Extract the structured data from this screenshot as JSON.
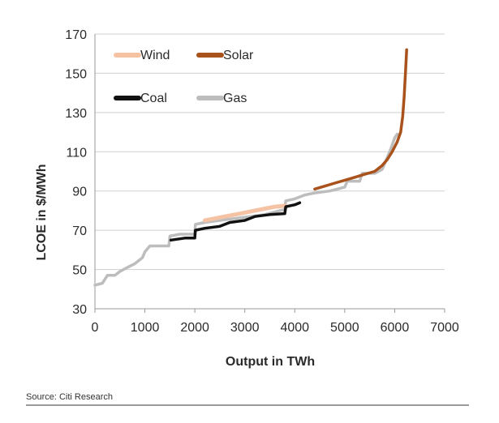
{
  "chart_data": {
    "type": "line",
    "xlabel": "Output in TWh",
    "ylabel": "LCOE in $/MWh",
    "xlim": [
      0,
      7000
    ],
    "ylim": [
      30,
      170
    ],
    "xticks": [
      0,
      1000,
      2000,
      3000,
      4000,
      5000,
      6000,
      7000
    ],
    "yticks": [
      30,
      50,
      70,
      90,
      110,
      130,
      150,
      170
    ],
    "grid": "horizontal",
    "legend_placement": "top-left",
    "series": [
      {
        "name": "Wind",
        "color": "#f5c2a4",
        "points": [
          [
            2200,
            75
          ],
          [
            2400,
            76
          ],
          [
            2600,
            77
          ],
          [
            2800,
            78
          ],
          [
            3000,
            79
          ],
          [
            3200,
            80
          ],
          [
            3400,
            81
          ],
          [
            3600,
            82
          ],
          [
            3800,
            82.5
          ]
        ]
      },
      {
        "name": "Solar",
        "color": "#a9521c",
        "points": [
          [
            4400,
            91
          ],
          [
            4600,
            92.5
          ],
          [
            4800,
            94
          ],
          [
            5000,
            95.5
          ],
          [
            5200,
            97
          ],
          [
            5400,
            98.5
          ],
          [
            5600,
            100
          ],
          [
            5750,
            103
          ],
          [
            5850,
            106
          ],
          [
            5950,
            110
          ],
          [
            6050,
            115
          ],
          [
            6120,
            120
          ],
          [
            6160,
            128
          ],
          [
            6190,
            138
          ],
          [
            6215,
            150
          ],
          [
            6240,
            162
          ]
        ]
      },
      {
        "name": "Coal",
        "color": "#111111",
        "points": [
          [
            1520,
            65
          ],
          [
            1800,
            66
          ],
          [
            2000,
            66
          ],
          [
            2010,
            70
          ],
          [
            2200,
            71
          ],
          [
            2500,
            72
          ],
          [
            2700,
            74
          ],
          [
            3000,
            75
          ],
          [
            3200,
            77
          ],
          [
            3500,
            78
          ],
          [
            3800,
            78.5
          ],
          [
            3820,
            82
          ],
          [
            4000,
            83
          ],
          [
            4100,
            84
          ]
        ]
      },
      {
        "name": "Gas",
        "color": "#bdbdbd",
        "points": [
          [
            0,
            42
          ],
          [
            150,
            43
          ],
          [
            250,
            47
          ],
          [
            400,
            47
          ],
          [
            500,
            49
          ],
          [
            650,
            51
          ],
          [
            800,
            53
          ],
          [
            950,
            56
          ],
          [
            1000,
            59
          ],
          [
            1100,
            62
          ],
          [
            1300,
            62
          ],
          [
            1480,
            62
          ],
          [
            1500,
            67
          ],
          [
            1700,
            68
          ],
          [
            2000,
            68
          ],
          [
            2010,
            73
          ],
          [
            2200,
            74
          ],
          [
            2500,
            75
          ],
          [
            2800,
            76
          ],
          [
            3100,
            77
          ],
          [
            3400,
            78
          ],
          [
            3700,
            80
          ],
          [
            3800,
            80.5
          ],
          [
            3820,
            85
          ],
          [
            4000,
            86
          ],
          [
            4200,
            88
          ],
          [
            4400,
            89
          ],
          [
            4700,
            90
          ],
          [
            5000,
            92
          ],
          [
            5050,
            95
          ],
          [
            5300,
            95
          ],
          [
            5350,
            99
          ],
          [
            5600,
            99
          ],
          [
            5750,
            101
          ],
          [
            5800,
            104
          ],
          [
            5900,
            110
          ],
          [
            6000,
            117
          ],
          [
            6050,
            119
          ]
        ]
      }
    ]
  },
  "source_text": "Source: Citi Research"
}
